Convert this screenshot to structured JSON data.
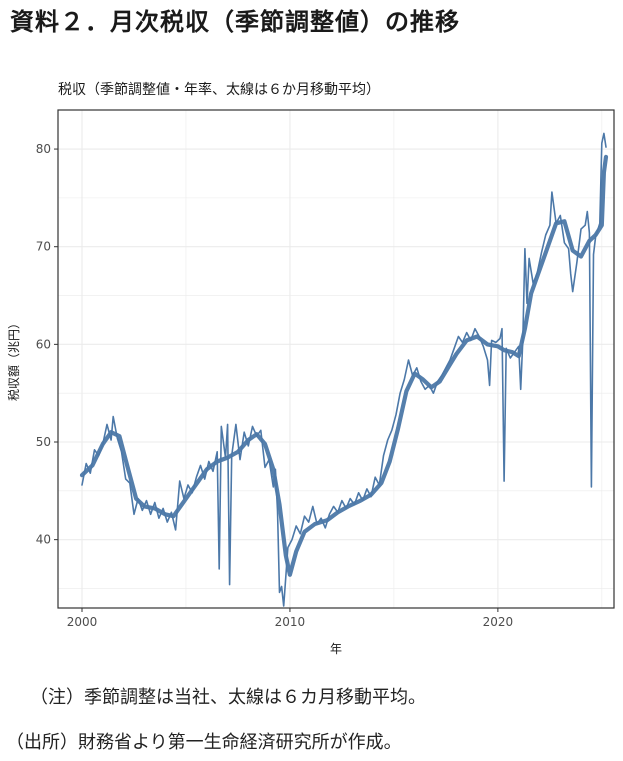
{
  "document": {
    "title": "資料２．月次税収（季節調整値）の推移"
  },
  "notes": {
    "note1": "（注）季節調整は当社、太線は６カ月移動平均。",
    "note2": "（出所）財務省より第一生命経済研究所が作成。"
  },
  "colors": {
    "line": "#4c78a8",
    "grid": "#ebebeb",
    "frame": "#333333"
  },
  "chart_data": {
    "type": "line",
    "title": "税収（季節調整値・年率、太線は６か月移動平均）",
    "xlabel": "年",
    "ylabel": "税収額（兆円）",
    "xlim": [
      2000.0,
      2025.2
    ],
    "ylim": [
      33,
      84
    ],
    "x_ticks": [
      2000,
      2010,
      2020
    ],
    "y_ticks": [
      40,
      50,
      60,
      70,
      80
    ],
    "grid": true,
    "series": [
      {
        "style": "thin",
        "points": [
          [
            2000.0,
            45.6
          ],
          [
            2000.2,
            47.8
          ],
          [
            2000.4,
            46.8
          ],
          [
            2000.6,
            49.2
          ],
          [
            2000.8,
            48.6
          ],
          [
            2001.0,
            49.8
          ],
          [
            2001.2,
            51.8
          ],
          [
            2001.4,
            50.2
          ],
          [
            2001.5,
            52.6
          ],
          [
            2001.7,
            50.4
          ],
          [
            2001.9,
            49.0
          ],
          [
            2002.1,
            46.2
          ],
          [
            2002.3,
            45.8
          ],
          [
            2002.5,
            42.6
          ],
          [
            2002.7,
            44.2
          ],
          [
            2002.9,
            43.0
          ],
          [
            2003.1,
            44.0
          ],
          [
            2003.3,
            42.6
          ],
          [
            2003.5,
            43.8
          ],
          [
            2003.7,
            42.2
          ],
          [
            2003.9,
            43.2
          ],
          [
            2004.1,
            41.8
          ],
          [
            2004.3,
            42.8
          ],
          [
            2004.5,
            41.0
          ],
          [
            2004.7,
            46.0
          ],
          [
            2004.9,
            44.2
          ],
          [
            2005.1,
            45.6
          ],
          [
            2005.3,
            44.8
          ],
          [
            2005.5,
            46.4
          ],
          [
            2005.7,
            47.6
          ],
          [
            2005.9,
            46.2
          ],
          [
            2006.1,
            48.0
          ],
          [
            2006.3,
            47.0
          ],
          [
            2006.5,
            49.0
          ],
          [
            2006.6,
            37.0
          ],
          [
            2006.7,
            51.6
          ],
          [
            2006.9,
            48.4
          ],
          [
            2007.0,
            51.8
          ],
          [
            2007.1,
            35.4
          ],
          [
            2007.2,
            48.6
          ],
          [
            2007.4,
            51.8
          ],
          [
            2007.6,
            48.2
          ],
          [
            2007.8,
            51.0
          ],
          [
            2008.0,
            49.6
          ],
          [
            2008.2,
            51.6
          ],
          [
            2008.4,
            50.6
          ],
          [
            2008.6,
            51.2
          ],
          [
            2008.8,
            47.4
          ],
          [
            2009.0,
            48.2
          ],
          [
            2009.2,
            45.4
          ],
          [
            2009.3,
            47.2
          ],
          [
            2009.4,
            43.0
          ],
          [
            2009.5,
            34.6
          ],
          [
            2009.6,
            35.2
          ],
          [
            2009.7,
            33.2
          ],
          [
            2009.8,
            36.2
          ],
          [
            2009.9,
            39.2
          ],
          [
            2010.1,
            40.0
          ],
          [
            2010.3,
            41.4
          ],
          [
            2010.5,
            40.6
          ],
          [
            2010.7,
            42.4
          ],
          [
            2010.9,
            41.8
          ],
          [
            2011.1,
            43.4
          ],
          [
            2011.3,
            41.6
          ],
          [
            2011.5,
            42.2
          ],
          [
            2011.7,
            41.2
          ],
          [
            2011.9,
            42.6
          ],
          [
            2012.1,
            43.4
          ],
          [
            2012.3,
            42.8
          ],
          [
            2012.5,
            44.0
          ],
          [
            2012.7,
            43.2
          ],
          [
            2012.9,
            44.2
          ],
          [
            2013.1,
            43.6
          ],
          [
            2013.3,
            44.8
          ],
          [
            2013.5,
            44.0
          ],
          [
            2013.7,
            45.2
          ],
          [
            2013.9,
            44.4
          ],
          [
            2014.1,
            46.4
          ],
          [
            2014.3,
            45.6
          ],
          [
            2014.5,
            48.6
          ],
          [
            2014.7,
            50.2
          ],
          [
            2014.9,
            51.2
          ],
          [
            2015.1,
            52.8
          ],
          [
            2015.3,
            55.0
          ],
          [
            2015.5,
            56.4
          ],
          [
            2015.7,
            58.4
          ],
          [
            2015.9,
            56.8
          ],
          [
            2016.1,
            57.6
          ],
          [
            2016.3,
            56.2
          ],
          [
            2016.5,
            55.4
          ],
          [
            2016.7,
            55.8
          ],
          [
            2016.9,
            55.0
          ],
          [
            2017.1,
            56.2
          ],
          [
            2017.3,
            56.8
          ],
          [
            2017.5,
            57.6
          ],
          [
            2017.7,
            58.4
          ],
          [
            2017.9,
            59.6
          ],
          [
            2018.1,
            60.8
          ],
          [
            2018.3,
            60.2
          ],
          [
            2018.5,
            61.2
          ],
          [
            2018.7,
            60.4
          ],
          [
            2018.9,
            61.6
          ],
          [
            2019.1,
            60.8
          ],
          [
            2019.3,
            59.8
          ],
          [
            2019.5,
            58.4
          ],
          [
            2019.6,
            55.8
          ],
          [
            2019.7,
            60.4
          ],
          [
            2019.9,
            60.2
          ],
          [
            2020.1,
            60.6
          ],
          [
            2020.2,
            61.6
          ],
          [
            2020.3,
            46.0
          ],
          [
            2020.4,
            59.6
          ],
          [
            2020.6,
            58.6
          ],
          [
            2020.8,
            59.2
          ],
          [
            2021.0,
            59.8
          ],
          [
            2021.1,
            55.4
          ],
          [
            2021.2,
            60.4
          ],
          [
            2021.3,
            69.8
          ],
          [
            2021.4,
            64.2
          ],
          [
            2021.5,
            68.8
          ],
          [
            2021.7,
            66.2
          ],
          [
            2021.9,
            67.4
          ],
          [
            2022.1,
            69.4
          ],
          [
            2022.3,
            71.2
          ],
          [
            2022.5,
            72.2
          ],
          [
            2022.6,
            75.6
          ],
          [
            2022.8,
            72.4
          ],
          [
            2023.0,
            73.2
          ],
          [
            2023.2,
            70.4
          ],
          [
            2023.4,
            69.8
          ],
          [
            2023.5,
            67.2
          ],
          [
            2023.6,
            65.4
          ],
          [
            2023.8,
            68.4
          ],
          [
            2024.0,
            71.8
          ],
          [
            2024.2,
            72.2
          ],
          [
            2024.3,
            73.6
          ],
          [
            2024.4,
            71.4
          ],
          [
            2024.5,
            45.4
          ],
          [
            2024.6,
            69.2
          ],
          [
            2024.7,
            71.0
          ],
          [
            2024.9,
            72.4
          ],
          [
            2025.0,
            80.6
          ],
          [
            2025.1,
            81.6
          ],
          [
            2025.2,
            80.2
          ]
        ]
      },
      {
        "style": "thick",
        "points": [
          [
            2000.0,
            46.6
          ],
          [
            2000.5,
            47.6
          ],
          [
            2001.0,
            49.8
          ],
          [
            2001.4,
            51.0
          ],
          [
            2001.8,
            50.6
          ],
          [
            2002.2,
            47.4
          ],
          [
            2002.6,
            44.2
          ],
          [
            2003.0,
            43.4
          ],
          [
            2003.5,
            43.2
          ],
          [
            2004.0,
            42.6
          ],
          [
            2004.4,
            42.4
          ],
          [
            2004.8,
            43.6
          ],
          [
            2005.2,
            44.8
          ],
          [
            2005.6,
            46.0
          ],
          [
            2006.0,
            47.2
          ],
          [
            2006.5,
            48.0
          ],
          [
            2007.0,
            48.4
          ],
          [
            2007.5,
            49.0
          ],
          [
            2008.0,
            50.2
          ],
          [
            2008.4,
            50.8
          ],
          [
            2008.8,
            49.8
          ],
          [
            2009.2,
            47.2
          ],
          [
            2009.5,
            43.6
          ],
          [
            2009.8,
            38.4
          ],
          [
            2010.0,
            36.4
          ],
          [
            2010.3,
            38.8
          ],
          [
            2010.7,
            40.8
          ],
          [
            2011.2,
            41.6
          ],
          [
            2011.8,
            42.0
          ],
          [
            2012.3,
            42.8
          ],
          [
            2012.8,
            43.4
          ],
          [
            2013.4,
            44.0
          ],
          [
            2013.9,
            44.6
          ],
          [
            2014.4,
            45.8
          ],
          [
            2014.8,
            48.0
          ],
          [
            2015.2,
            51.4
          ],
          [
            2015.6,
            55.2
          ],
          [
            2016.0,
            57.0
          ],
          [
            2016.4,
            56.4
          ],
          [
            2016.8,
            55.6
          ],
          [
            2017.2,
            56.2
          ],
          [
            2017.6,
            57.6
          ],
          [
            2018.0,
            59.0
          ],
          [
            2018.5,
            60.4
          ],
          [
            2019.0,
            60.8
          ],
          [
            2019.5,
            60.0
          ],
          [
            2020.0,
            59.8
          ],
          [
            2020.3,
            59.4
          ],
          [
            2020.7,
            59.2
          ],
          [
            2021.0,
            58.8
          ],
          [
            2021.3,
            61.6
          ],
          [
            2021.6,
            65.2
          ],
          [
            2022.0,
            67.6
          ],
          [
            2022.4,
            70.0
          ],
          [
            2022.8,
            72.4
          ],
          [
            2023.2,
            72.6
          ],
          [
            2023.6,
            69.6
          ],
          [
            2024.0,
            69.0
          ],
          [
            2024.4,
            70.6
          ],
          [
            2024.7,
            71.2
          ],
          [
            2025.0,
            72.2
          ],
          [
            2025.1,
            77.6
          ],
          [
            2025.2,
            79.2
          ]
        ]
      }
    ]
  }
}
